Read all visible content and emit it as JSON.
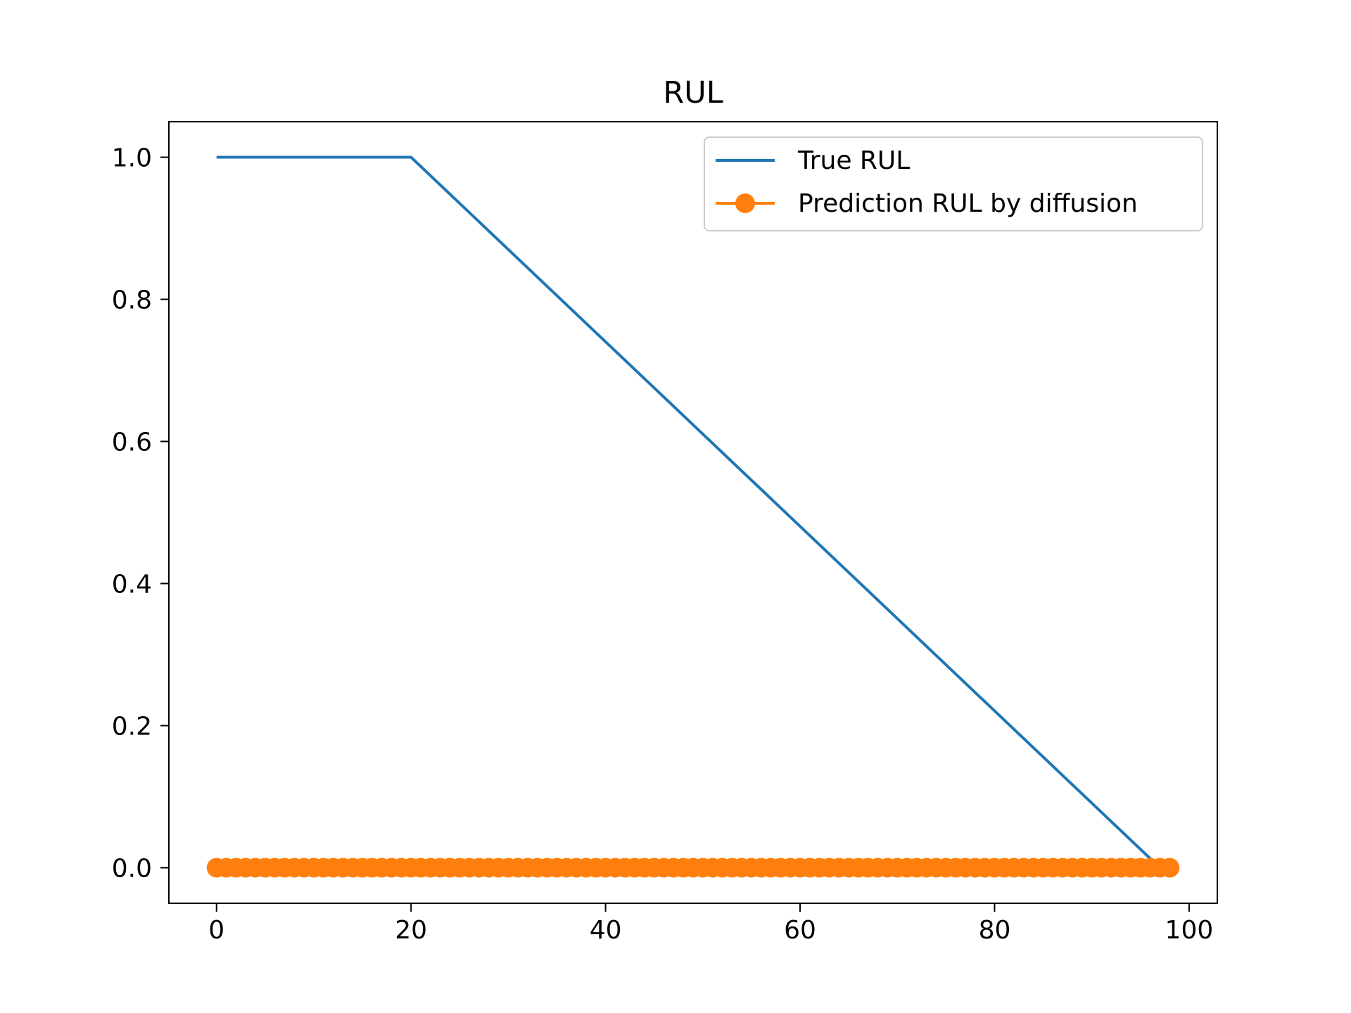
{
  "chart_data": {
    "type": "line",
    "title": "RUL",
    "xlabel": "",
    "ylabel": "",
    "xlim": [
      -4.9,
      102.9
    ],
    "ylim": [
      -0.05,
      1.05
    ],
    "xticks": [
      0,
      20,
      40,
      60,
      80,
      100
    ],
    "xtick_labels": [
      "0",
      "20",
      "40",
      "60",
      "80",
      "100"
    ],
    "yticks": [
      0.0,
      0.2,
      0.4,
      0.6,
      0.8,
      1.0
    ],
    "ytick_labels": [
      "0.0",
      "0.2",
      "0.4",
      "0.6",
      "0.8",
      "1.0"
    ],
    "grid": false,
    "legend_position": "top-right",
    "series": [
      {
        "name": "True RUL",
        "style": "line",
        "color": "#1f77b4",
        "x": [
          0,
          20,
          97
        ],
        "y": [
          1.0,
          1.0,
          0.0
        ]
      },
      {
        "name": "Prediction RUL by diffusion",
        "style": "line-marker",
        "color": "#ff7f0e",
        "x_start": 0,
        "x_end": 98,
        "x_step": 1,
        "y_constant": 0.0
      }
    ]
  }
}
